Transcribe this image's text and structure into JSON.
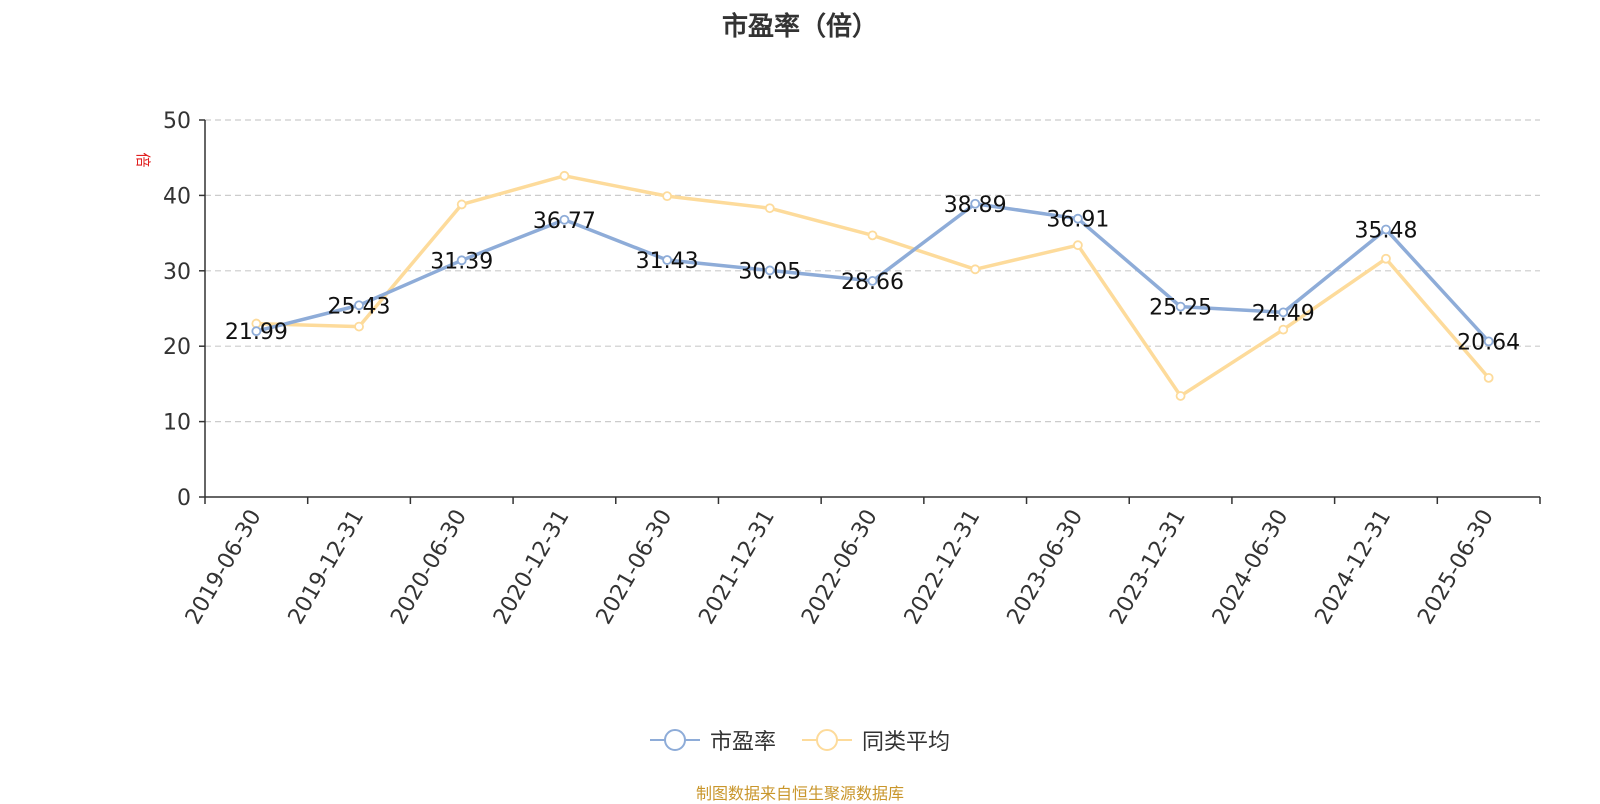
{
  "title": "市盈率（倍）",
  "source_note": "制图数据来自恒生聚源数据库",
  "chart_data": {
    "type": "line",
    "title": "市盈率（倍）",
    "ylabel": "倍",
    "xlabel": "",
    "ylim": [
      0,
      50
    ],
    "yticks": [
      0,
      10,
      20,
      30,
      40,
      50
    ],
    "grid": "horizontal-dashed",
    "legend_position": "bottom-center",
    "categories": [
      "2019-06-30",
      "2019-12-31",
      "2020-06-30",
      "2020-12-31",
      "2021-06-30",
      "2021-12-31",
      "2022-06-30",
      "2022-12-31",
      "2023-06-30",
      "2023-12-31",
      "2024-06-30",
      "2024-12-31",
      "2025-06-30"
    ],
    "series": [
      {
        "name": "市盈率",
        "color": "#8eacd8",
        "show_labels": true,
        "values": [
          21.99,
          25.43,
          31.39,
          36.77,
          31.43,
          30.05,
          28.66,
          38.89,
          36.91,
          25.25,
          24.49,
          35.48,
          20.64
        ]
      },
      {
        "name": "同类平均",
        "color": "#fddb9b",
        "show_labels": false,
        "values": [
          23.0,
          22.6,
          38.8,
          42.6,
          39.9,
          38.3,
          34.7,
          30.2,
          33.4,
          13.4,
          22.2,
          31.6,
          15.8
        ]
      }
    ]
  }
}
